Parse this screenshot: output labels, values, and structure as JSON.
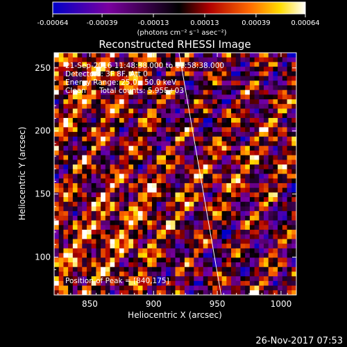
{
  "chart_data": {
    "type": "heatmap",
    "title": "Reconstructed RHESSI Image",
    "xlabel": "Heliocentric X (arcsec)",
    "ylabel": "Heliocentric Y (arcsec)",
    "xlim": [
      822,
      1012
    ],
    "ylim": [
      70,
      262
    ],
    "x_ticks": [
      850,
      900,
      950,
      1000
    ],
    "y_ticks": [
      100,
      150,
      200,
      250
    ],
    "colorbar": {
      "range": [
        -0.00064,
        0.00064
      ],
      "tick_labels": [
        "-0.00064",
        "-0.00039",
        "-0.00013",
        "0.00013",
        "0.00039",
        "0.00064"
      ],
      "unit_label": "(photons cm⁻² s⁻¹ asec⁻²)",
      "colors": [
        "#0000c8",
        "#7a00a0",
        "#000000",
        "#b00000",
        "#ff6a00",
        "#ffdc00",
        "#ffffff"
      ]
    },
    "annotations": {
      "time_range": "21-Sep-2016 11:48:38.000 to 11:58:38.000",
      "detectors": "Detectors: 3F 8F, Att 0",
      "energy": "Energy Range: 25.0 - 50.0 keV",
      "method": "Clean",
      "counts": "Total counts: 5.95E+03",
      "peak": "Position of Peak = [840,175]"
    },
    "limb_line": {
      "x": [
        920,
        953
      ],
      "y": [
        262,
        70
      ]
    },
    "peak_position": [
      840,
      175
    ]
  },
  "timestamp": "26-Nov-2017 07:53"
}
